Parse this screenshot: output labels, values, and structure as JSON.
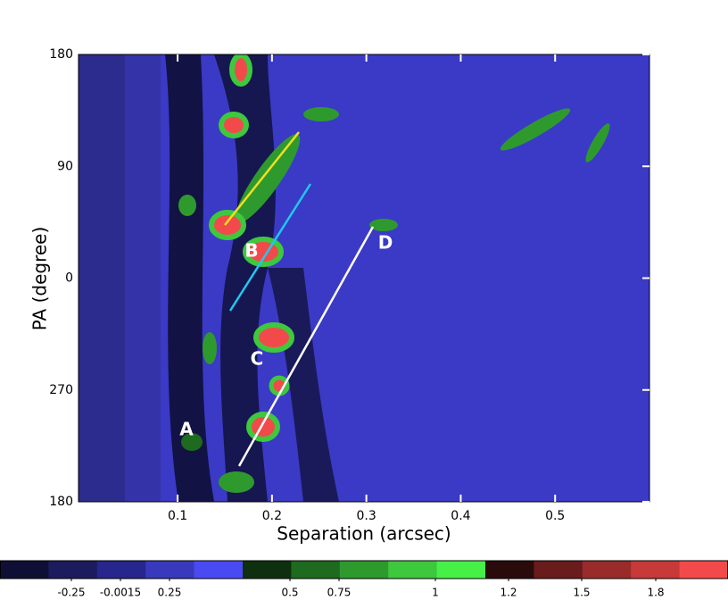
{
  "chart_data": {
    "type": "contour",
    "xlabel": "Separation (arcsec)",
    "ylabel": "PA (degree)",
    "xlim": [
      -0.005,
      0.6
    ],
    "xticks": [
      0.1,
      0.2,
      0.3,
      0.4,
      0.5
    ],
    "ylim": [
      -180,
      180
    ],
    "yticks": [
      180,
      90,
      0,
      {
        "value": -90,
        "label": "270"
      },
      {
        "value": -180,
        "label": "180"
      }
    ],
    "annotations": [
      "A",
      "B",
      "C",
      "D"
    ],
    "colorbar": {
      "colors": [
        "#0f0f35",
        "#1b1b5e",
        "#26268c",
        "#3939bd",
        "#4a4af2",
        "#0f300f",
        "#1e6a1e",
        "#2e9a2e",
        "#3ec83e",
        "#46f046",
        "#2a0b0b",
        "#6a1b1b",
        "#9a2b2b",
        "#c83939",
        "#f24a4a"
      ],
      "ticks": [
        -0.25,
        -0.0015,
        0.25,
        0.5,
        0.75,
        1,
        1.2,
        1.5,
        1.8
      ]
    }
  }
}
